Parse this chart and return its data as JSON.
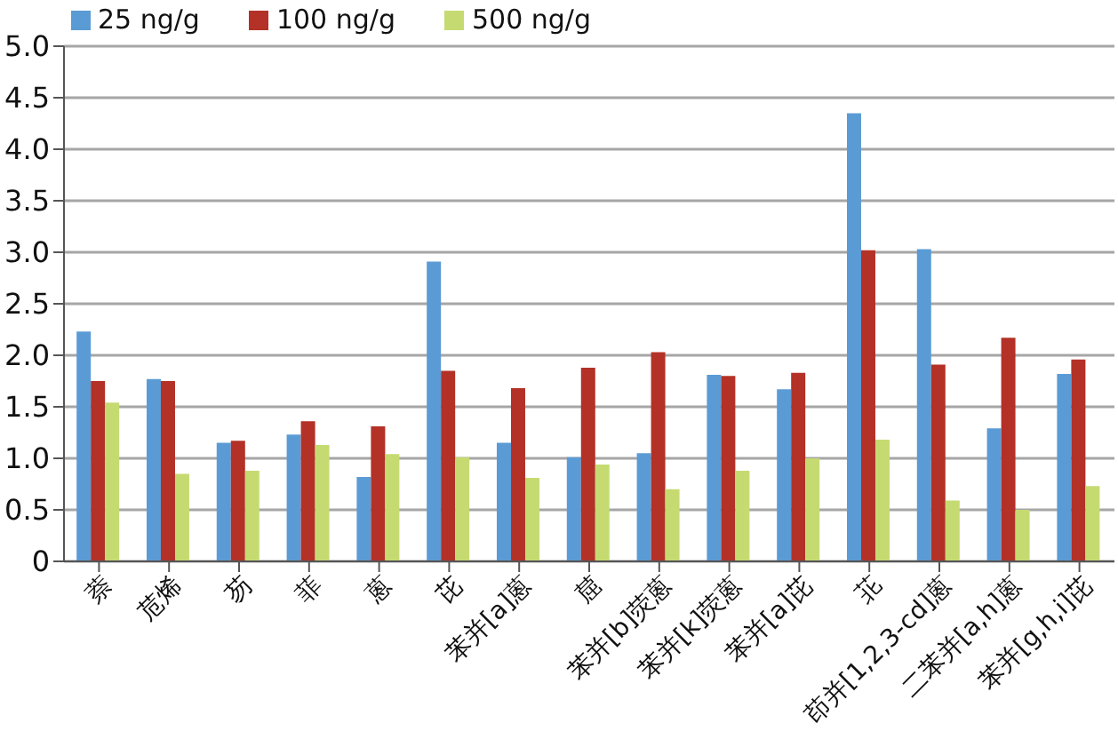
{
  "chart_data": {
    "type": "bar",
    "categories": [
      "萘",
      "苊烯",
      "芴",
      "菲",
      "蒽",
      "芘",
      "苯并[a]蒽",
      "䓛",
      "苯并[b]荧蒽",
      "苯并[k]荧蒽",
      "苯并[a]芘",
      "苝",
      "茚并[1,2,3-cd]蒽",
      "二苯并[a,h]蒽",
      "苯并[g,h,i]芘"
    ],
    "series": [
      {
        "name": "25 ng/g",
        "color": "#5b9bd5",
        "values": [
          2.23,
          1.77,
          1.15,
          1.23,
          0.82,
          2.91,
          1.15,
          1.01,
          1.05,
          1.81,
          1.67,
          4.35,
          3.03,
          1.29,
          1.82
        ]
      },
      {
        "name": "100 ng/g",
        "color": "#b33126",
        "values": [
          1.75,
          1.75,
          1.17,
          1.36,
          1.31,
          1.85,
          1.68,
          1.88,
          2.03,
          1.8,
          1.83,
          3.02,
          1.91,
          2.17,
          1.96
        ]
      },
      {
        "name": "500 ng/g",
        "color": "#c5db72",
        "values": [
          1.54,
          0.85,
          0.88,
          1.13,
          1.04,
          1.01,
          0.81,
          0.94,
          0.7,
          0.88,
          1.0,
          1.18,
          0.59,
          0.5,
          0.73
        ]
      }
    ],
    "ylim": [
      0,
      5
    ],
    "yticks": [
      {
        "value": 0,
        "label": "0"
      },
      {
        "value": 0.5,
        "label": "0.5"
      },
      {
        "value": 1,
        "label": "1.0"
      },
      {
        "value": 1.5,
        "label": "1.5"
      },
      {
        "value": 2,
        "label": "2.0"
      },
      {
        "value": 2.5,
        "label": "2.5"
      },
      {
        "value": 3,
        "label": "3.0"
      },
      {
        "value": 3.5,
        "label": "3.5"
      },
      {
        "value": 4,
        "label": "4.0"
      },
      {
        "value": 4.5,
        "label": "4.5"
      },
      {
        "value": 5,
        "label": "5.0"
      }
    ],
    "grid": "y",
    "legend": "top left"
  }
}
